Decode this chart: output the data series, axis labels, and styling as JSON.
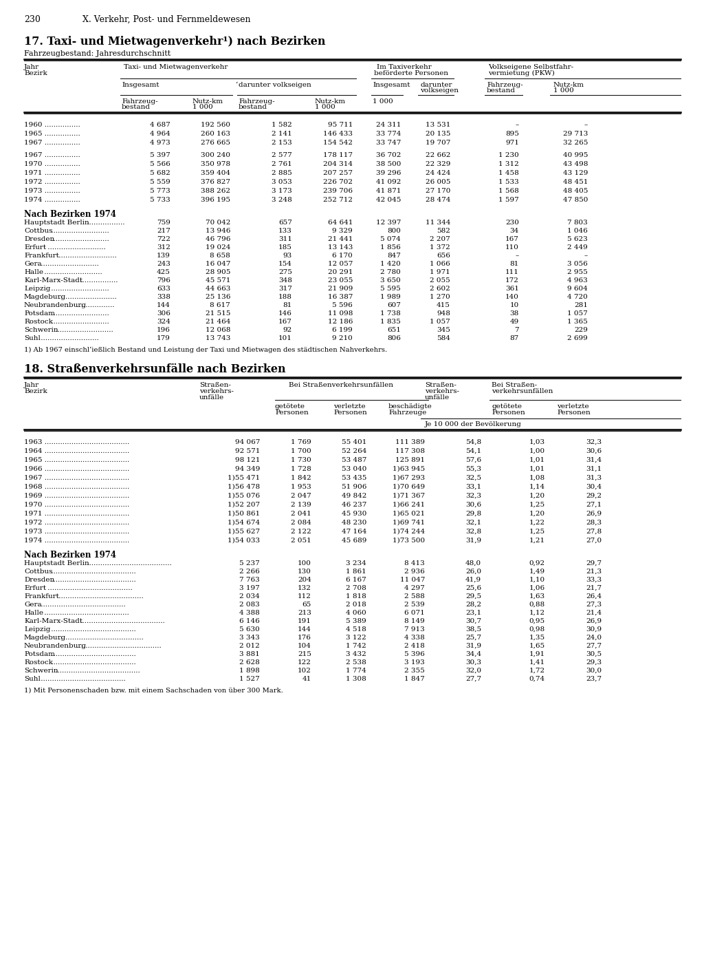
{
  "page_number": "230",
  "chapter": "X. Verkehr, Post- und Fernmeldewesen",
  "table1_title": "17. Taxi- und Mietwagenverkehr¹) nach Bezirken",
  "table1_subtitle": "Fahrzeugbestand: Jahresdurchschnitt",
  "table1_data_years1": [
    [
      "1960",
      "4 687",
      "192 560",
      "1 582",
      "95 711",
      "24 311",
      "13 531",
      "–",
      "–"
    ],
    [
      "1965",
      "4 964",
      "260 163",
      "2 141",
      "146 433",
      "33 774",
      "20 135",
      "895",
      "29 713"
    ],
    [
      "1967",
      "4 973",
      "276 665",
      "2 153",
      "154 542",
      "33 747",
      "19 707",
      "971",
      "32 265"
    ]
  ],
  "table1_data_years2": [
    [
      "1967",
      "5 397",
      "300 240",
      "2 577",
      "178 117",
      "36 702",
      "22 662",
      "1 230",
      "40 995"
    ],
    [
      "1970",
      "5 566",
      "350 978",
      "2 761",
      "204 314",
      "38 500",
      "22 329",
      "1 312",
      "43 498"
    ],
    [
      "1971",
      "5 682",
      "359 404",
      "2 885",
      "207 257",
      "39 296",
      "24 424",
      "1 458",
      "43 129"
    ],
    [
      "1972",
      "5 559",
      "376 827",
      "3 053",
      "226 702",
      "41 092",
      "26 005",
      "1 533",
      "48 451"
    ],
    [
      "1973",
      "5 773",
      "388 262",
      "3 173",
      "239 706",
      "41 871",
      "27 170",
      "1 568",
      "48 405"
    ],
    [
      "1974",
      "5 733",
      "396 195",
      "3 248",
      "252 712",
      "42 045",
      "28 474",
      "1 597",
      "47 850"
    ]
  ],
  "table1_bezirke": [
    [
      "Hauptstadt Berlin",
      "759",
      "70 042",
      "657",
      "64 641",
      "12 397",
      "11 344",
      "230",
      "7 803"
    ],
    [
      "Cottbus",
      "217",
      "13 946",
      "133",
      "9 329",
      "800",
      "582",
      "34",
      "1 046"
    ],
    [
      "Dresden",
      "722",
      "46 796",
      "311",
      "21 441",
      "5 074",
      "2 207",
      "167",
      "5 623"
    ],
    [
      "Erfurt",
      "312",
      "19 024",
      "185",
      "13 143",
      "1 856",
      "1 372",
      "110",
      "2 449"
    ],
    [
      "Frankfurt",
      "139",
      "8 658",
      "93",
      "6 170",
      "847",
      "656",
      "–",
      "–"
    ],
    [
      "Gera",
      "243",
      "16 047",
      "154",
      "12 057",
      "1 420",
      "1 066",
      "81",
      "3 056"
    ],
    [
      "Halle",
      "425",
      "28 905",
      "275",
      "20 291",
      "2 780",
      "1 971",
      "111",
      "2 955"
    ],
    [
      "Karl-Marx-Stadt",
      "796",
      "45 571",
      "348",
      "23 055",
      "3 650",
      "2 055",
      "172",
      "4 963"
    ],
    [
      "Leipzig",
      "633",
      "44 663",
      "317",
      "21 909",
      "5 595",
      "2 602",
      "361",
      "9 604"
    ],
    [
      "Magdeburg",
      "338",
      "25 136",
      "188",
      "16 387",
      "1 989",
      "1 270",
      "140",
      "4 720"
    ],
    [
      "Neubrandenburg",
      "144",
      "8 617",
      "81",
      "5 596",
      "607",
      "415",
      "10",
      "281"
    ],
    [
      "Potsdam",
      "306",
      "21 515",
      "146",
      "11 098",
      "1 738",
      "948",
      "38",
      "1 057"
    ],
    [
      "Rostock",
      "324",
      "21 464",
      "167",
      "12 186",
      "1 835",
      "1 057",
      "49",
      "1 365"
    ],
    [
      "Schwerin",
      "196",
      "12 068",
      "92",
      "6 199",
      "651",
      "345",
      "7",
      "229"
    ],
    [
      "Suhl",
      "179",
      "13 743",
      "101",
      "9 210",
      "806",
      "584",
      "87",
      "2 699"
    ]
  ],
  "table1_footnote": "1) Ab 1967 einschl‘ießlich Bestand und Leistung der Taxi und Mietwagen des städtischen Nahverkehrs.",
  "table2_title": "18. Straßenverkehrsunfälle nach Bezirken",
  "table2_data_years": [
    [
      "1963",
      "94 067",
      "1 769",
      "55 401",
      "111 389",
      "54,8",
      "1,03",
      "32,3"
    ],
    [
      "1964",
      "92 571",
      "1 700",
      "52 264",
      "117 308",
      "54,1",
      "1,00",
      "30,6"
    ],
    [
      "1965",
      "98 121",
      "1 730",
      "53 487",
      "125 891",
      "57,6",
      "1,01",
      "31,4"
    ],
    [
      "1966",
      "94 349",
      "1 728",
      "53 040",
      "1)63 945",
      "55,3",
      "1,01",
      "31,1"
    ],
    [
      "1967",
      "1)55 471",
      "1 842",
      "53 435",
      "1)67 293",
      "32,5",
      "1,08",
      "31,3"
    ],
    [
      "1968",
      "1)56 478",
      "1 953",
      "51 906",
      "1)70 649",
      "33,1",
      "1,14",
      "30,4"
    ],
    [
      "1969",
      "1)55 076",
      "2 047",
      "49 842",
      "1)71 367",
      "32,3",
      "1,20",
      "29,2"
    ],
    [
      "1970",
      "1)52 207",
      "2 139",
      "46 237",
      "1)66 241",
      "30,6",
      "1,25",
      "27,1"
    ],
    [
      "1971",
      "1)50 861",
      "2 041",
      "45 930",
      "1)65 021",
      "29,8",
      "1,20",
      "26,9"
    ],
    [
      "1972",
      "1)54 674",
      "2 084",
      "48 230",
      "1)69 741",
      "32,1",
      "1,22",
      "28,3"
    ],
    [
      "1973",
      "1)55 627",
      "2 122",
      "47 164",
      "1)74 244",
      "32,8",
      "1,25",
      "27,8"
    ],
    [
      "1974",
      "1)54 033",
      "2 051",
      "45 689",
      "1)73 500",
      "31,9",
      "1,21",
      "27,0"
    ]
  ],
  "table2_bezirke": [
    [
      "Hauptstadt Berlin",
      "5 237",
      "100",
      "3 234",
      "8 413",
      "48,0",
      "0,92",
      "29,7"
    ],
    [
      "Cottbus",
      "2 266",
      "130",
      "1 861",
      "2 936",
      "26,0",
      "1,49",
      "21,3"
    ],
    [
      "Dresden",
      "7 763",
      "204",
      "6 167",
      "11 047",
      "41,9",
      "1,10",
      "33,3"
    ],
    [
      "Erfurt",
      "3 197",
      "132",
      "2 708",
      "4 297",
      "25,6",
      "1,06",
      "21,7"
    ],
    [
      "Frankfurt",
      "2 034",
      "112",
      "1 818",
      "2 588",
      "29,5",
      "1,63",
      "26,4"
    ],
    [
      "Gera",
      "2 083",
      "65",
      "2 018",
      "2 539",
      "28,2",
      "0,88",
      "27,3"
    ],
    [
      "Halle",
      "4 388",
      "213",
      "4 060",
      "6 071",
      "23,1",
      "1,12",
      "21,4"
    ],
    [
      "Karl-Marx-Stadt",
      "6 146",
      "191",
      "5 389",
      "8 149",
      "30,7",
      "0,95",
      "26,9"
    ],
    [
      "Leipzig",
      "5 630",
      "144",
      "4 518",
      "7 913",
      "38,5",
      "0,98",
      "30,9"
    ],
    [
      "Magdeburg",
      "3 343",
      "176",
      "3 122",
      "4 338",
      "25,7",
      "1,35",
      "24,0"
    ],
    [
      "Neubrandenburg",
      "2 012",
      "104",
      "1 742",
      "2 418",
      "31,9",
      "1,65",
      "27,7"
    ],
    [
      "Potsdam",
      "3 881",
      "215",
      "3 432",
      "5 396",
      "34,4",
      "1,91",
      "30,5"
    ],
    [
      "Rostock",
      "2 628",
      "122",
      "2 538",
      "3 193",
      "30,3",
      "1,41",
      "29,3"
    ],
    [
      "Schwerin",
      "1 898",
      "102",
      "1 774",
      "2 355",
      "32,0",
      "1,72",
      "30,0"
    ],
    [
      "Suhl",
      "1 527",
      "41",
      "1 308",
      "1 847",
      "27,7",
      "0,74",
      "23,7"
    ]
  ],
  "table2_footnote": "1) Mit Personenschaden bzw. mit einem Sachschaden von über 300 Mark."
}
